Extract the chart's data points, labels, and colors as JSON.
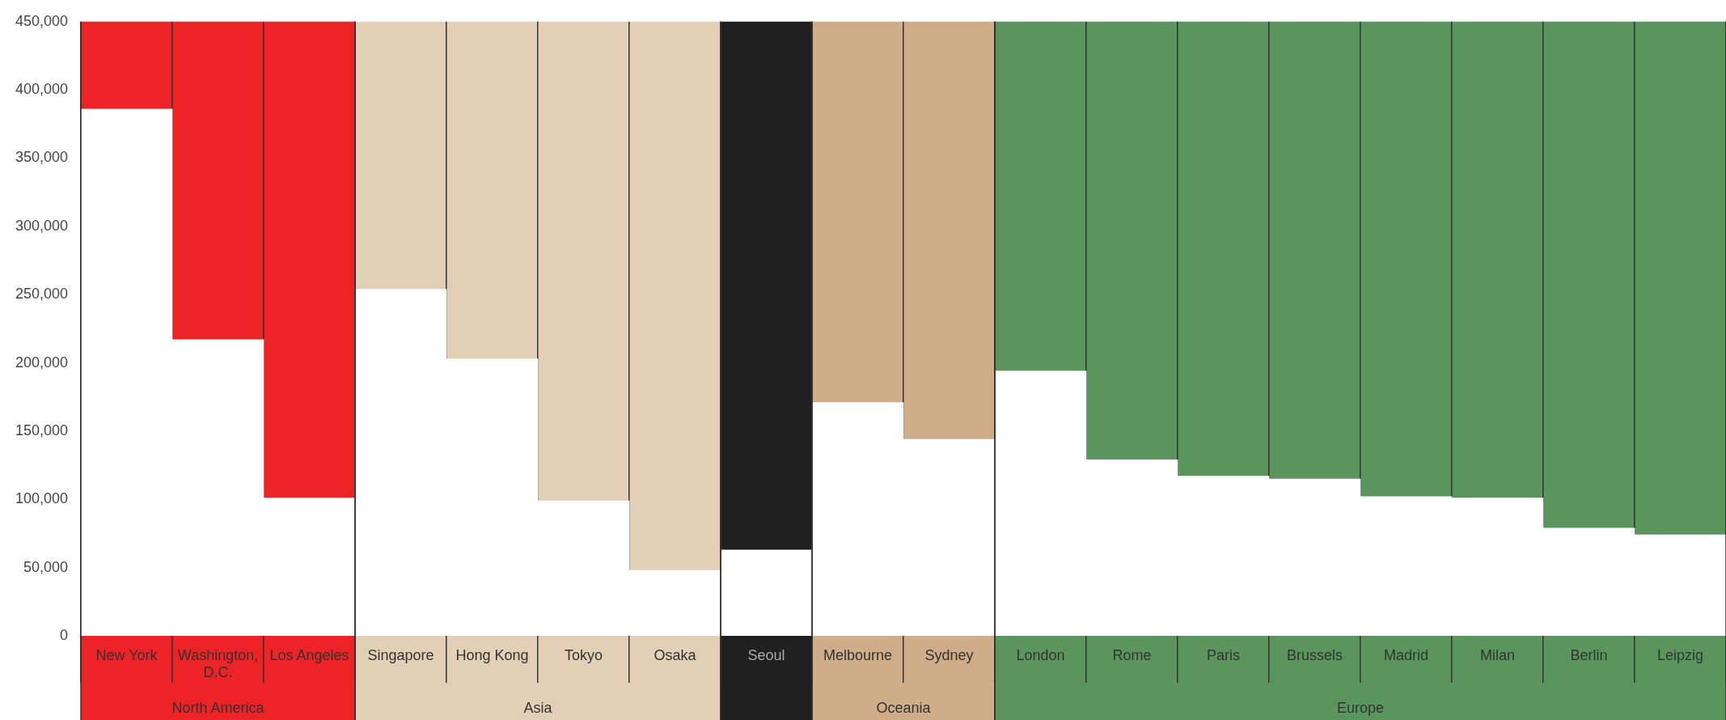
{
  "chart_data": {
    "type": "bar",
    "categories": [
      "New York",
      "Washington, D.C.",
      "Los Angeles",
      "Singapore",
      "Hong Kong",
      "Tokyo",
      "Osaka",
      "Seoul",
      "Melbourne",
      "Sydney",
      "London",
      "Rome",
      "Paris",
      "Brussels",
      "Madrid",
      "Milan",
      "Berlin",
      "Leipzig"
    ],
    "values": [
      386000,
      217000,
      101000,
      254000,
      203000,
      99000,
      48000,
      63000,
      171000,
      144000,
      194000,
      129000,
      117000,
      115000,
      102000,
      101000,
      79000,
      74000
    ],
    "color": "#ffffff",
    "ylim": [
      0,
      450000
    ],
    "yticks": [
      {
        "value": 0,
        "label": "0"
      },
      {
        "value": 50000,
        "label": "50,000"
      },
      {
        "value": 100000,
        "label": "100,000"
      },
      {
        "value": 150000,
        "label": "150,000"
      },
      {
        "value": 200000,
        "label": "200,000"
      },
      {
        "value": 250000,
        "label": "250,000"
      },
      {
        "value": 300000,
        "label": "300,000"
      },
      {
        "value": 350000,
        "label": "350,000"
      },
      {
        "value": 400000,
        "label": "400,000"
      },
      {
        "value": 450000,
        "label": "450,000"
      }
    ],
    "bands": [
      {
        "axis": "x",
        "from": "New York",
        "to": "Los Angeles",
        "label": "North America",
        "color": "#ee2326"
      },
      {
        "axis": "x",
        "from": "Singapore",
        "to": "Osaka",
        "label": "Asia",
        "color": "#e2cfb6"
      },
      {
        "axis": "x",
        "from": "Seoul",
        "to": "Seoul",
        "label": null,
        "color": "#202020"
      },
      {
        "axis": "x",
        "from": "Melbourne",
        "to": "Sydney",
        "label": "Oceania",
        "color": "#cead88"
      },
      {
        "axis": "x",
        "from": "London",
        "to": "Leipzig",
        "label": "Europe",
        "color": "#5b955e"
      }
    ],
    "grid": "x",
    "legend": false
  }
}
